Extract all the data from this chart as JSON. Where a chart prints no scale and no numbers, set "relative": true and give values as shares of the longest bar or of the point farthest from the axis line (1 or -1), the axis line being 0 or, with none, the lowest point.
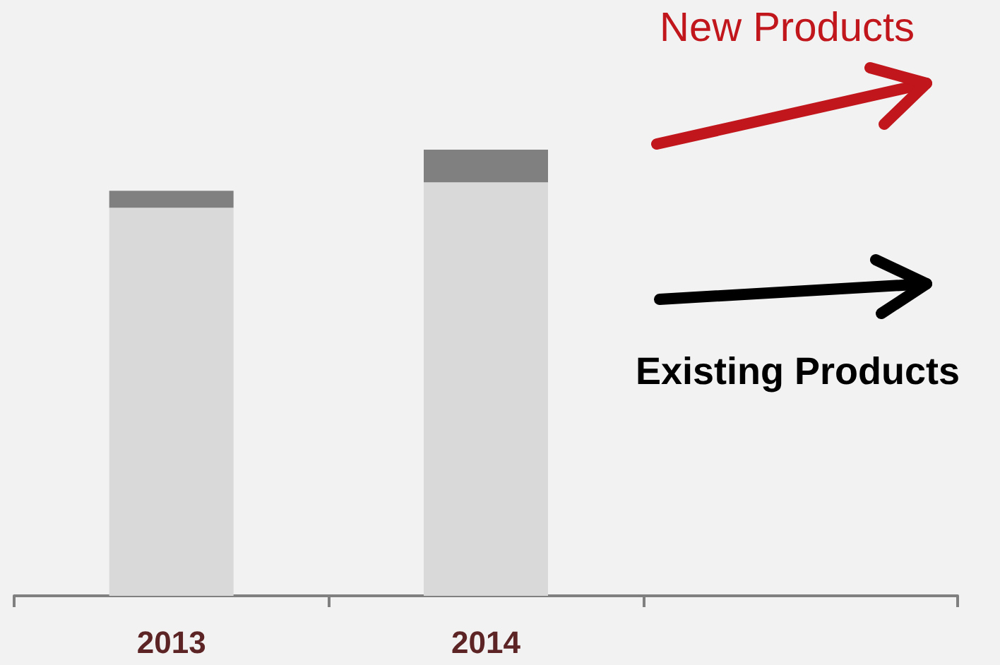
{
  "chart_data": {
    "type": "bar",
    "relative": true,
    "stacked": true,
    "categories": [
      "2013",
      "2014",
      null
    ],
    "series": [
      {
        "color": "#d9d9d9",
        "values": [
          0.87,
          0.927,
          null
        ]
      },
      {
        "color": "#808080",
        "values": [
          0.038,
          0.073,
          null
        ]
      }
    ],
    "annotations": [
      "New Products",
      "Existing Products"
    ],
    "grid": false
  }
}
